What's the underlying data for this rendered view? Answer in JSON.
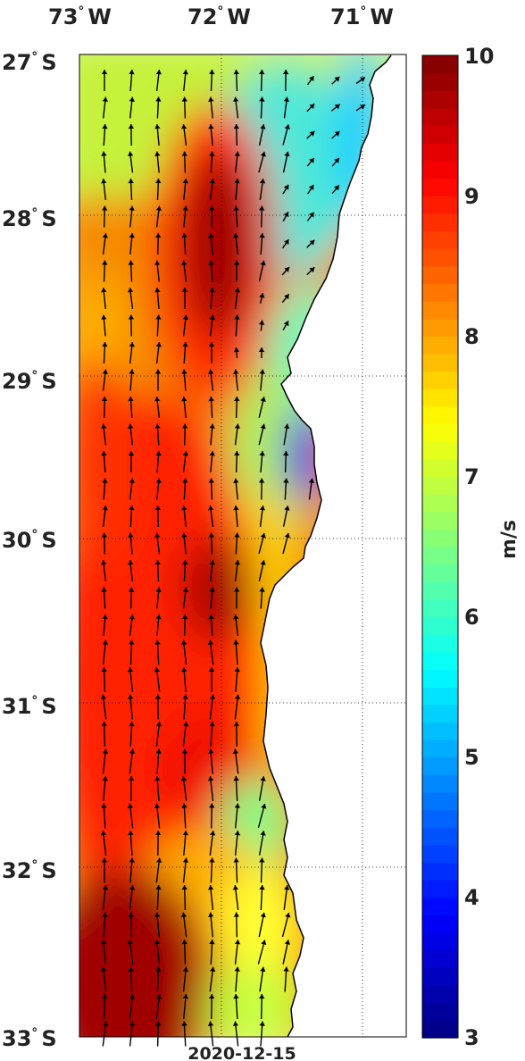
{
  "map": {
    "longitude_labels": [
      "73",
      "72",
      "71"
    ],
    "longitude_suffix": "W",
    "latitude_labels": [
      "27",
      "28",
      "29",
      "30",
      "31",
      "32",
      "33"
    ],
    "latitude_suffix": "S",
    "degree_symbol": "°",
    "date": "2020-12-15",
    "lon_range": [
      -73.0,
      -70.7
    ],
    "lat_range": [
      -33.0,
      -27.0
    ],
    "field": "wind speed",
    "vector_field": "wind direction arrows, predominantly northward",
    "coastline_side": "east"
  },
  "colorbar": {
    "unit_label": "m/s",
    "min": 3,
    "max": 10,
    "ticks": [
      "10",
      "9",
      "8",
      "7",
      "6",
      "5",
      "4",
      "3"
    ],
    "colormap": "jet"
  },
  "colors": {
    "land": "#ffffff",
    "frame": "#000000",
    "arrow": "#000000",
    "text": "#222222"
  }
}
